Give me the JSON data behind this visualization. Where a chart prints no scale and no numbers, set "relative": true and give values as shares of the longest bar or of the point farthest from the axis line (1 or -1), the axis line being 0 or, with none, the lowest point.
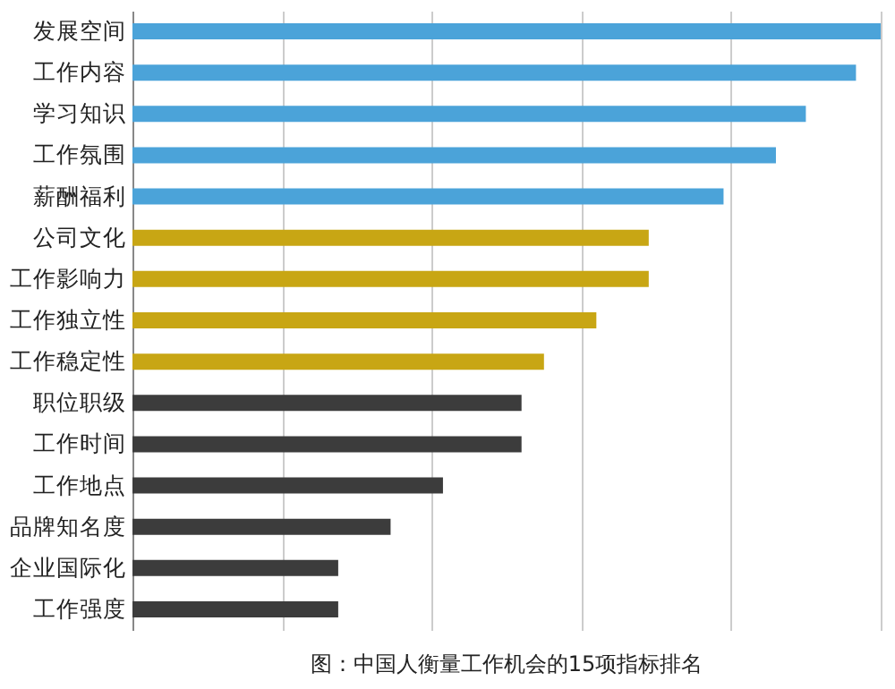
{
  "chart_data": {
    "type": "bar",
    "orientation": "horizontal",
    "relative": true,
    "grid": "x",
    "categories": [
      "发展空间",
      "工作内容",
      "学习知识",
      "工作氛围",
      "薪酬福利",
      "公司文化",
      "工作影响力",
      "工作独立性",
      "工作稳定性",
      "职位职级",
      "工作时间",
      "工作地点",
      "品牌知名度",
      "企业国际化",
      "工作强度"
    ],
    "values": [
      1.0,
      0.967,
      0.9,
      0.86,
      0.79,
      0.69,
      0.69,
      0.62,
      0.55,
      0.52,
      0.52,
      0.415,
      0.345,
      0.275,
      0.275
    ],
    "colors": [
      "#4ba3d9",
      "#4ba3d9",
      "#4ba3d9",
      "#4ba3d9",
      "#4ba3d9",
      "#c8a614",
      "#c8a614",
      "#c8a614",
      "#c8a614",
      "#3c3c3c",
      "#3c3c3c",
      "#3c3c3c",
      "#3c3c3c",
      "#3c3c3c",
      "#3c3c3c"
    ],
    "annotations": [
      "图：中国人衡量工作机会的15项指标排名"
    ]
  }
}
